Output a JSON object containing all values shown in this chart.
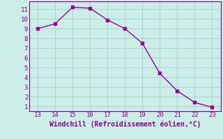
{
  "x": [
    13,
    14,
    15,
    16,
    17,
    18,
    19,
    20,
    21,
    22,
    23
  ],
  "y": [
    9.0,
    9.5,
    11.2,
    11.1,
    9.9,
    9.0,
    7.5,
    4.4,
    2.6,
    1.4,
    0.9
  ],
  "line_color": "#990099",
  "marker": "s",
  "marker_size": 2.5,
  "line_width": 1.0,
  "xlim": [
    12.5,
    23.5
  ],
  "ylim": [
    0.5,
    11.8
  ],
  "xticks": [
    13,
    14,
    15,
    16,
    17,
    18,
    19,
    20,
    21,
    22,
    23
  ],
  "yticks": [
    1,
    2,
    3,
    4,
    5,
    6,
    7,
    8,
    9,
    10,
    11
  ],
  "xlabel": "Windchill (Refroidissement éolien,°C)",
  "background_color": "#cceee8",
  "grid_color": "#aad4ce",
  "tick_fontsize": 6.5,
  "label_fontsize": 7.0,
  "tick_color": "#880088",
  "label_color": "#880088",
  "spine_color": "#880088"
}
